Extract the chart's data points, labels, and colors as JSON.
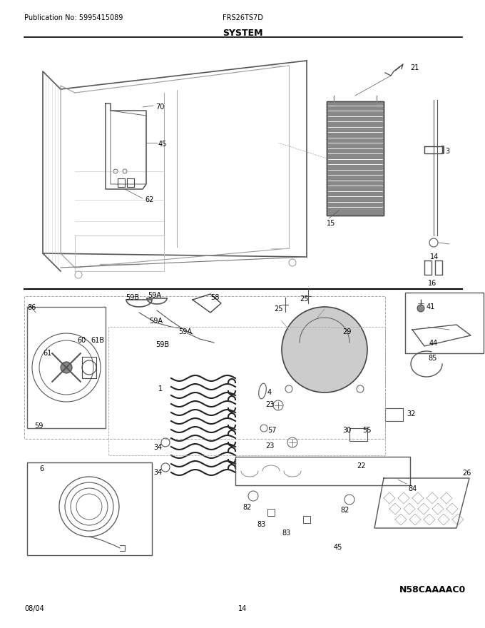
{
  "pub_no": "Publication No: 5995415089",
  "model": "FRS26TS7D",
  "title": "SYSTEM",
  "date": "08/04",
  "page": "14",
  "diagram_code": "N58CAAAAC0",
  "bg_color": "#ffffff",
  "header_fontsize": 7,
  "title_fontsize": 9,
  "footer_fontsize": 7,
  "label_fontsize": 7
}
